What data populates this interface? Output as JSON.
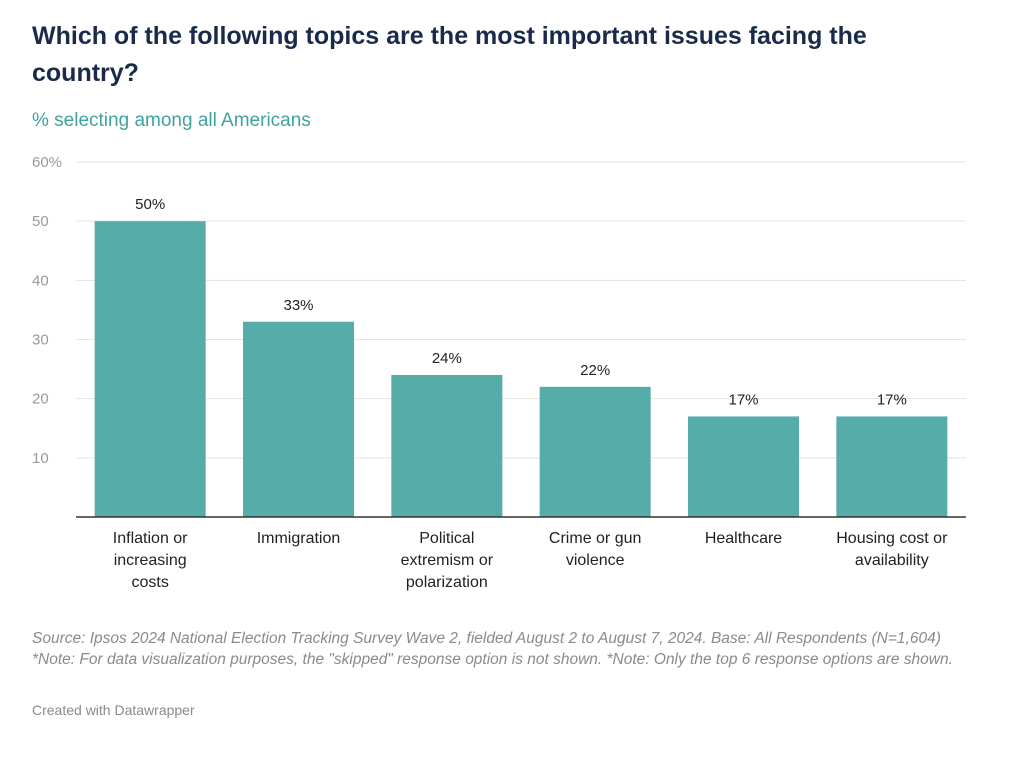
{
  "header": {
    "title": "Which of the following topics are the most important issues facing the country?",
    "subtitle": "% selecting among all Americans"
  },
  "footer": {
    "source": "Source: Ipsos 2024 National Election Tracking Survey Wave 2, fielded August 2 to August 7, 2024. Base: All Respondents (N=1,604) *Note: For data visualization purposes, the \"skipped\" response option is not shown. *Note: Only the top 6 response options are shown.",
    "credit": "Created with Datawrapper"
  },
  "colors": {
    "bar": "#55aca9",
    "gridline": "#e3e3e3",
    "axis": "#333333",
    "title": "#1a2b4a",
    "subtitle": "#3fa3a0"
  },
  "chart_data": {
    "type": "bar",
    "title": "Which of the following topics are the most important issues facing the country?",
    "subtitle": "% selecting among all Americans",
    "categories": [
      [
        "Inflation or",
        "increasing",
        "costs"
      ],
      [
        "Immigration"
      ],
      [
        "Political",
        "extremism or",
        "polarization"
      ],
      [
        "Crime or gun",
        "violence"
      ],
      [
        "Healthcare"
      ],
      [
        "Housing cost or",
        "availability"
      ]
    ],
    "values": [
      50,
      33,
      24,
      22,
      17,
      17
    ],
    "value_labels": [
      "50%",
      "33%",
      "24%",
      "22%",
      "17%",
      "17%"
    ],
    "yticks": [
      10,
      20,
      30,
      40,
      50,
      60
    ],
    "ytick_labels": [
      "10",
      "20",
      "30",
      "40",
      "50",
      "60%"
    ],
    "ylim": [
      0,
      60
    ],
    "grid": true,
    "legend": "none"
  }
}
